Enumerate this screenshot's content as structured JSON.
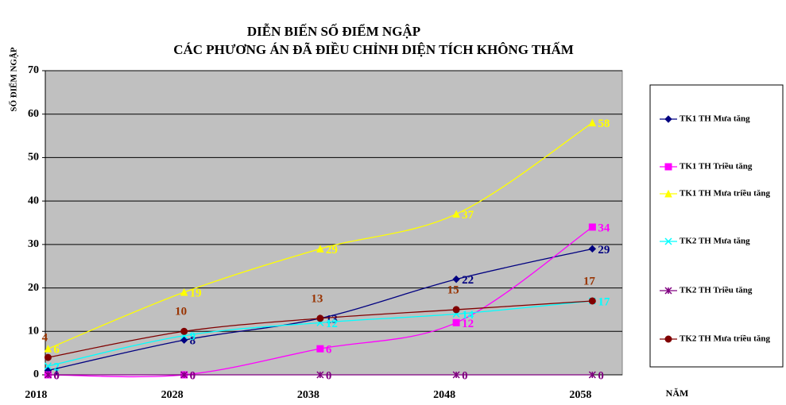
{
  "chart_data": {
    "type": "line",
    "title": "DIỄN BIẾN SỐ ĐIỂM NGẬP",
    "subtitle": "CÁC PHƯƠNG ÁN ĐÃ ĐIỀU CHỈNH DIỆN TÍCH KHÔNG THẤM",
    "y_label": "SỐ ĐIỂM NGẬP",
    "x_label": "NĂM",
    "x": [
      2018,
      2028,
      2038,
      2048,
      2058
    ],
    "xlim": [
      2017.8,
      2060.2
    ],
    "xticks": [
      2018,
      2028,
      2038,
      2048,
      2058
    ],
    "ylim": [
      0,
      70
    ],
    "yticks": [
      0,
      10,
      20,
      30,
      40,
      50,
      60,
      70
    ],
    "grid": true,
    "legend": "right",
    "series": [
      {
        "name": "TK1 TH Mưa tăng",
        "color": "#000080",
        "marker": "diamond",
        "values": [
          1,
          8,
          13,
          22,
          29
        ]
      },
      {
        "name": "TK1 TH Triều tăng",
        "color": "#ff00ff",
        "marker": "square",
        "values": [
          0,
          0,
          6,
          12,
          34
        ]
      },
      {
        "name": "TK1 TH Mưa triều tăng",
        "color": "#ffff00",
        "marker": "triangle",
        "values": [
          6,
          19,
          29,
          37,
          58
        ]
      },
      {
        "name": "TK2 TH Mưa tăng",
        "color": "#00ffff",
        "marker": "x",
        "values": [
          2,
          9,
          12,
          14,
          17
        ]
      },
      {
        "name": "TK2 TH Triều tăng",
        "color": "#800080",
        "marker": "star",
        "values": [
          0,
          0,
          0,
          0,
          0
        ]
      },
      {
        "name": "TK2 TH Mưa triều tăng",
        "color": "#800000",
        "label_color": "#993300",
        "marker": "circle",
        "values": [
          4,
          10,
          13,
          15,
          17
        ]
      }
    ]
  }
}
